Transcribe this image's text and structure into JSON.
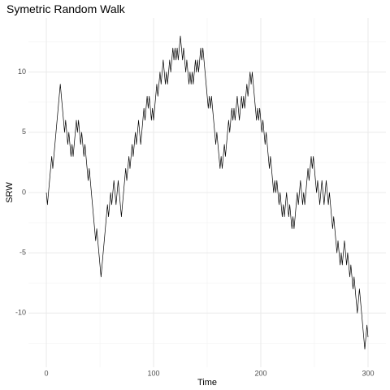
{
  "chart_data": {
    "type": "line",
    "title": "Symetric Random Walk",
    "x_label": "Time",
    "y_label": "SRW",
    "color": "#000000",
    "grid": true,
    "xlim": [
      -16.7,
      316.7
    ],
    "ylim": [
      -14.5,
      14.5
    ],
    "xticks": [
      0,
      100,
      200,
      300
    ],
    "yticks": [
      -10,
      -5,
      0,
      5,
      10
    ],
    "x": [
      0,
      1,
      2,
      3,
      4,
      5,
      6,
      7,
      8,
      9,
      10,
      11,
      12,
      13,
      14,
      15,
      16,
      17,
      18,
      19,
      20,
      21,
      22,
      23,
      24,
      25,
      26,
      27,
      28,
      29,
      30,
      31,
      32,
      33,
      34,
      35,
      36,
      37,
      38,
      39,
      40,
      41,
      42,
      43,
      44,
      45,
      46,
      47,
      48,
      49,
      50,
      51,
      52,
      53,
      54,
      55,
      56,
      57,
      58,
      59,
      60,
      61,
      62,
      63,
      64,
      65,
      66,
      67,
      68,
      69,
      70,
      71,
      72,
      73,
      74,
      75,
      76,
      77,
      78,
      79,
      80,
      81,
      82,
      83,
      84,
      85,
      86,
      87,
      88,
      89,
      90,
      91,
      92,
      93,
      94,
      95,
      96,
      97,
      98,
      99,
      100,
      101,
      102,
      103,
      104,
      105,
      106,
      107,
      108,
      109,
      110,
      111,
      112,
      113,
      114,
      115,
      116,
      117,
      118,
      119,
      120,
      121,
      122,
      123,
      124,
      125,
      126,
      127,
      128,
      129,
      130,
      131,
      132,
      133,
      134,
      135,
      136,
      137,
      138,
      139,
      140,
      141,
      142,
      143,
      144,
      145,
      146,
      147,
      148,
      149,
      150,
      151,
      152,
      153,
      154,
      155,
      156,
      157,
      158,
      159,
      160,
      161,
      162,
      163,
      164,
      165,
      166,
      167,
      168,
      169,
      170,
      171,
      172,
      173,
      174,
      175,
      176,
      177,
      178,
      179,
      180,
      181,
      182,
      183,
      184,
      185,
      186,
      187,
      188,
      189,
      190,
      191,
      192,
      193,
      194,
      195,
      196,
      197,
      198,
      199,
      200,
      201,
      202,
      203,
      204,
      205,
      206,
      207,
      208,
      209,
      210,
      211,
      212,
      213,
      214,
      215,
      216,
      217,
      218,
      219,
      220,
      221,
      222,
      223,
      224,
      225,
      226,
      227,
      228,
      229,
      230,
      231,
      232,
      233,
      234,
      235,
      236,
      237,
      238,
      239,
      240,
      241,
      242,
      243,
      244,
      245,
      246,
      247,
      248,
      249,
      250,
      251,
      252,
      253,
      254,
      255,
      256,
      257,
      258,
      259,
      260,
      261,
      262,
      263,
      264,
      265,
      266,
      267,
      268,
      269,
      270,
      271,
      272,
      273,
      274,
      275,
      276,
      277,
      278,
      279,
      280,
      281,
      282,
      283,
      284,
      285,
      286,
      287,
      288,
      289,
      290,
      291,
      292,
      293,
      294,
      295,
      296,
      297,
      298,
      299,
      300
    ],
    "values": [
      0,
      -1,
      0,
      1,
      2,
      3,
      2,
      3,
      4,
      5,
      6,
      7,
      8,
      9,
      8,
      7,
      6,
      5,
      6,
      5,
      4,
      5,
      4,
      3,
      4,
      3,
      4,
      5,
      6,
      5,
      6,
      5,
      4,
      5,
      4,
      3,
      4,
      3,
      2,
      1,
      2,
      1,
      0,
      -1,
      -2,
      -3,
      -4,
      -3,
      -4,
      -5,
      -6,
      -7,
      -6,
      -5,
      -4,
      -3,
      -2,
      -1,
      -2,
      -1,
      0,
      -1,
      0,
      1,
      0,
      -1,
      0,
      1,
      0,
      -1,
      -2,
      -1,
      0,
      1,
      2,
      1,
      2,
      3,
      2,
      3,
      4,
      3,
      4,
      5,
      4,
      5,
      6,
      5,
      4,
      5,
      6,
      7,
      6,
      7,
      8,
      7,
      8,
      7,
      6,
      7,
      6,
      7,
      8,
      9,
      8,
      9,
      10,
      9,
      10,
      11,
      10,
      9,
      10,
      9,
      10,
      11,
      10,
      11,
      12,
      11,
      12,
      11,
      12,
      11,
      12,
      13,
      12,
      11,
      12,
      11,
      10,
      11,
      10,
      9,
      10,
      9,
      10,
      9,
      10,
      11,
      10,
      11,
      10,
      11,
      12,
      11,
      12,
      11,
      10,
      9,
      8,
      7,
      8,
      7,
      8,
      7,
      6,
      5,
      4,
      5,
      4,
      3,
      2,
      3,
      2,
      3,
      4,
      3,
      4,
      5,
      6,
      5,
      6,
      7,
      6,
      7,
      6,
      7,
      8,
      7,
      6,
      7,
      8,
      7,
      8,
      7,
      8,
      9,
      8,
      9,
      10,
      9,
      10,
      9,
      8,
      7,
      6,
      7,
      6,
      7,
      6,
      5,
      6,
      5,
      4,
      5,
      4,
      3,
      2,
      3,
      2,
      1,
      0,
      1,
      0,
      1,
      0,
      -1,
      0,
      -1,
      -2,
      -1,
      -2,
      -1,
      0,
      -1,
      -2,
      -1,
      -2,
      -3,
      -2,
      -3,
      -2,
      -1,
      0,
      -1,
      0,
      1,
      0,
      -1,
      0,
      -1,
      0,
      1,
      2,
      1,
      2,
      3,
      2,
      3,
      2,
      1,
      0,
      1,
      0,
      -1,
      0,
      1,
      0,
      -1,
      0,
      1,
      0,
      -1,
      0,
      -1,
      -2,
      -3,
      -2,
      -3,
      -4,
      -5,
      -4,
      -5,
      -6,
      -5,
      -6,
      -5,
      -4,
      -5,
      -6,
      -5,
      -6,
      -7,
      -6,
      -7,
      -8,
      -7,
      -8,
      -9,
      -10,
      -9,
      -8,
      -9,
      -10,
      -11,
      -12,
      -13,
      -12,
      -11,
      -12
    ]
  }
}
